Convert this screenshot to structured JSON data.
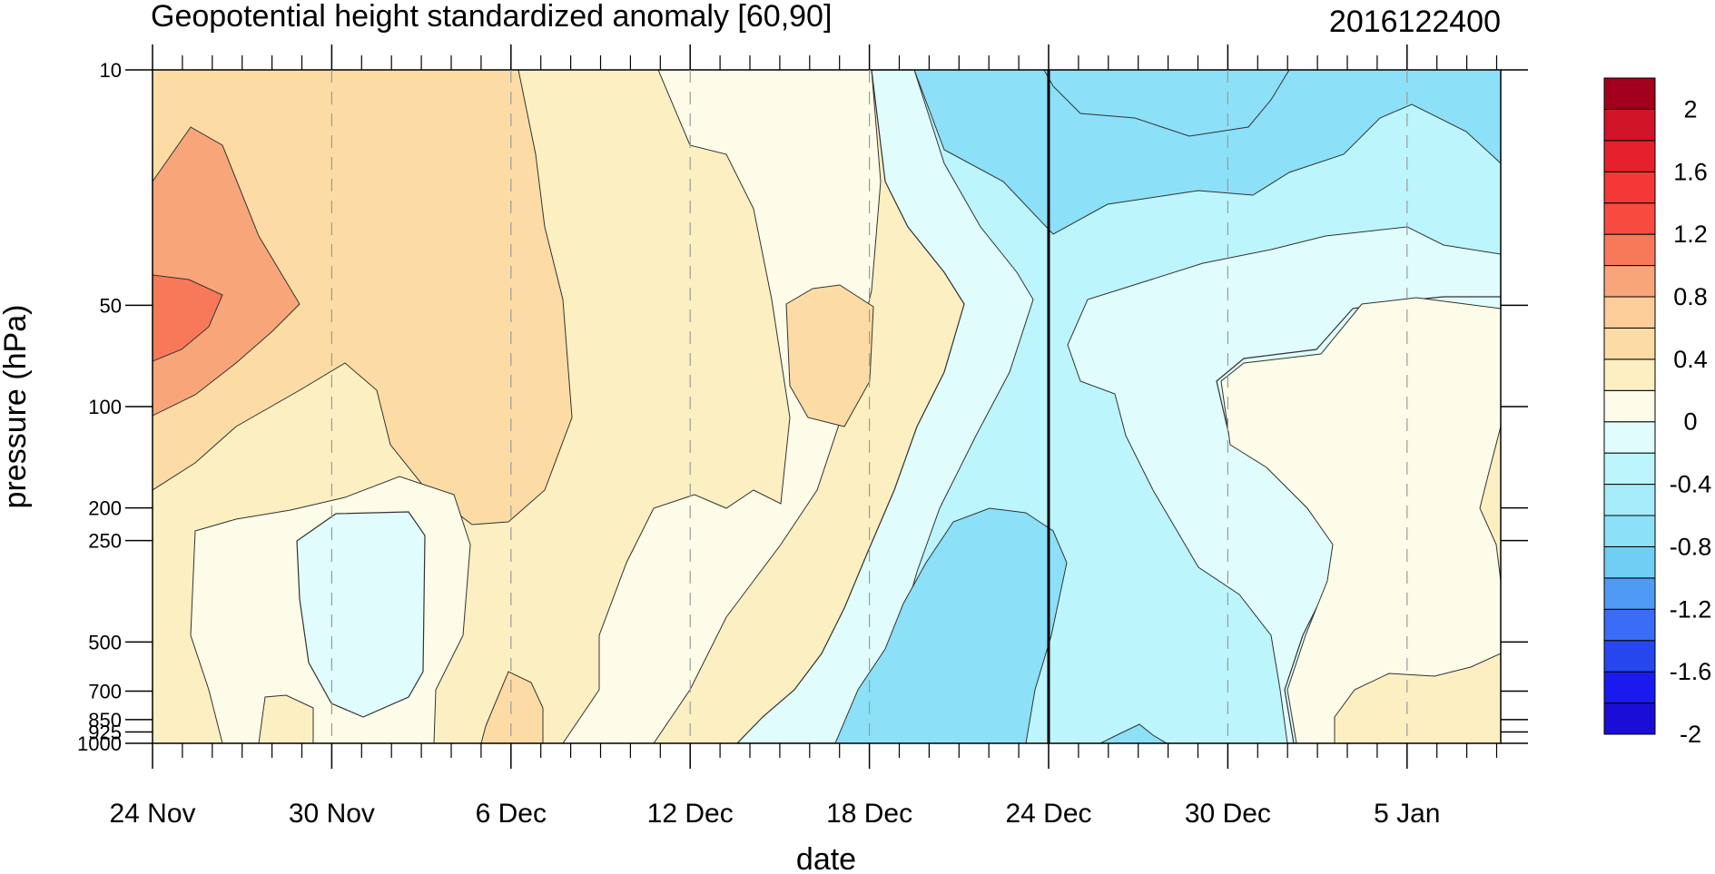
{
  "chart_data": {
    "type": "heatmap",
    "title": "Geopotential height standardized anomaly [60,90]",
    "subtitle_right": "2016122400",
    "xlabel": "date",
    "ylabel": "pressure (hPa)",
    "x_tick_labels": [
      "24 Nov",
      "30 Nov",
      "6 Dec",
      "12 Dec",
      "18 Dec",
      "24 Dec",
      "30 Dec",
      "5 Jan"
    ],
    "y_tick_labels": [
      "10",
      "50",
      "100",
      "200",
      "250",
      "500",
      "700",
      "850",
      "925",
      "1000"
    ],
    "y_axis": "log-pressure, reversed",
    "current_date_marker": "24 Dec",
    "colorbar": {
      "levels": [
        -2,
        -1.8,
        -1.6,
        -1.4,
        -1.2,
        -1,
        -0.8,
        -0.6,
        -0.4,
        -0.2,
        0,
        0.2,
        0.4,
        0.6,
        0.8,
        1,
        1.2,
        1.4,
        1.6,
        1.8,
        2
      ],
      "labels": [
        "2",
        "1.6",
        "1.2",
        "0.8",
        "0.4",
        "0",
        "-0.4",
        "-0.8",
        "-1.2",
        "-1.6",
        "-2"
      ],
      "colors": [
        "#1a0dd6",
        "#1a1af0",
        "#2646f0",
        "#3a6cf5",
        "#4f9af5",
        "#70cef5",
        "#8ce0f7",
        "#a6ecfa",
        "#bcf5fc",
        "#e0fcfc",
        "#fcfce8",
        "#fcefc2",
        "#fcdca4",
        "#fccd98",
        "#f9a57a",
        "#f7795a",
        "#f84b40",
        "#f43835",
        "#e5222c",
        "#d11428",
        "#a3001e"
      ]
    },
    "values_by_date": [
      {
        "date": "24 Nov",
        "p10": 0.6,
        "p50": 1.2,
        "p100": 0.8,
        "p200": 0.4,
        "p500": 0.2,
        "p850": 0.2
      },
      {
        "date": "30 Nov",
        "p10": 0.6,
        "p50": 0.8,
        "p100": 0.6,
        "p200": 0.2,
        "p500": -0.1,
        "p850": 0.1
      },
      {
        "date": "6 Dec",
        "p10": 0.6,
        "p50": 0.6,
        "p100": 0.7,
        "p200": 0.6,
        "p500": 0.3,
        "p850": 0.5
      },
      {
        "date": "12 Dec",
        "p10": 0.1,
        "p50": 0.3,
        "p100": 0.3,
        "p200": 0.3,
        "p500": 0.1,
        "p850": 0.1
      },
      {
        "date": "18 Dec",
        "p10": -0.1,
        "p50": 0.5,
        "p100": 0.3,
        "p200": -0.1,
        "p500": -0.4,
        "p850": -0.5
      },
      {
        "date": "24 Dec",
        "p10": -0.6,
        "p50": -0.4,
        "p100": -0.4,
        "p200": -0.5,
        "p500": -0.5,
        "p850": -0.5
      },
      {
        "date": "30 Dec",
        "p10": -0.6,
        "p50": -0.3,
        "p100": 0.1,
        "p200": 0.1,
        "p500": -0.2,
        "p850": -0.3
      },
      {
        "date": "5 Jan",
        "p10": -0.5,
        "p50": 0.1,
        "p100": 0.1,
        "p200": 0.1,
        "p500": 0.1,
        "p850": 0.1
      }
    ]
  }
}
